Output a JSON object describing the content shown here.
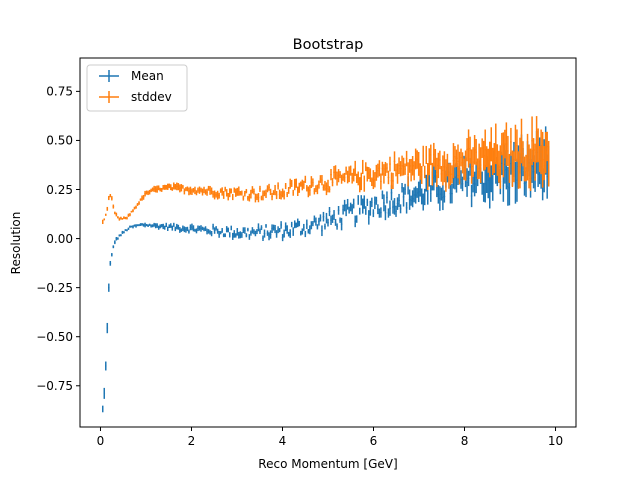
{
  "chart_data": {
    "type": "scatter",
    "title": "Bootstrap",
    "xlabel": "Reco Momentum [GeV]",
    "ylabel": "Resolution",
    "xlim": [
      -0.45,
      10.45
    ],
    "ylim": [
      -0.96,
      0.92
    ],
    "xticks": [
      0,
      2,
      4,
      6,
      8,
      10
    ],
    "xtick_labels": [
      "0",
      "2",
      "4",
      "6",
      "8",
      "10"
    ],
    "yticks": [
      -0.75,
      -0.5,
      -0.25,
      0.0,
      0.25,
      0.5,
      0.75
    ],
    "ytick_labels": [
      "−0.75",
      "−0.50",
      "−0.25",
      "0.00",
      "0.25",
      "0.50",
      "0.75"
    ],
    "grid": false,
    "legend_position": "top-left",
    "x_bin_width": 0.0333,
    "series": [
      {
        "name": "Mean",
        "color": "#1f77b4",
        "x": [
          0.05,
          0.1,
          0.15,
          0.2,
          0.3,
          0.4,
          0.5,
          0.6,
          0.7,
          0.8,
          0.9,
          1.0,
          1.2,
          1.5,
          2.0,
          2.5,
          3.0,
          3.5,
          4.0,
          4.5,
          5.0,
          5.5,
          6.0,
          6.5,
          7.0,
          7.5,
          8.0,
          8.5,
          9.0,
          9.5,
          9.85
        ],
        "y": [
          -0.87,
          -0.75,
          -0.45,
          -0.15,
          -0.02,
          0.01,
          0.03,
          0.05,
          0.06,
          0.065,
          0.07,
          0.07,
          0.065,
          0.06,
          0.05,
          0.04,
          0.03,
          0.03,
          0.04,
          0.06,
          0.09,
          0.13,
          0.17,
          0.2,
          0.23,
          0.26,
          0.29,
          0.31,
          0.33,
          0.35,
          0.38
        ],
        "err": [
          0.02,
          0.02,
          0.02,
          0.015,
          0.008,
          0.006,
          0.006,
          0.006,
          0.006,
          0.007,
          0.008,
          0.009,
          0.01,
          0.01,
          0.012,
          0.013,
          0.014,
          0.015,
          0.016,
          0.018,
          0.02,
          0.025,
          0.03,
          0.035,
          0.04,
          0.05,
          0.06,
          0.07,
          0.08,
          0.09,
          0.1
        ],
        "jitter": 0.04,
        "bins": 296
      },
      {
        "name": "stddev",
        "color": "#ff7f0e",
        "x": [
          0.05,
          0.1,
          0.15,
          0.2,
          0.25,
          0.3,
          0.4,
          0.5,
          0.6,
          0.7,
          0.8,
          0.9,
          1.0,
          1.2,
          1.5,
          2.0,
          2.5,
          3.0,
          3.5,
          4.0,
          4.5,
          5.0,
          5.5,
          6.0,
          6.5,
          7.0,
          7.5,
          8.0,
          8.5,
          9.0,
          9.5,
          9.85
        ],
        "y": [
          0.08,
          0.1,
          0.15,
          0.23,
          0.2,
          0.14,
          0.1,
          0.1,
          0.11,
          0.14,
          0.17,
          0.2,
          0.23,
          0.25,
          0.26,
          0.25,
          0.24,
          0.23,
          0.23,
          0.24,
          0.27,
          0.29,
          0.31,
          0.33,
          0.35,
          0.37,
          0.38,
          0.39,
          0.41,
          0.42,
          0.43,
          0.44
        ],
        "err": [
          0.008,
          0.008,
          0.008,
          0.01,
          0.01,
          0.008,
          0.006,
          0.006,
          0.006,
          0.007,
          0.008,
          0.01,
          0.012,
          0.013,
          0.015,
          0.016,
          0.017,
          0.018,
          0.019,
          0.02,
          0.022,
          0.025,
          0.03,
          0.035,
          0.04,
          0.05,
          0.06,
          0.07,
          0.08,
          0.09,
          0.1,
          0.11
        ],
        "jitter": 0.035,
        "bins": 296
      }
    ]
  }
}
